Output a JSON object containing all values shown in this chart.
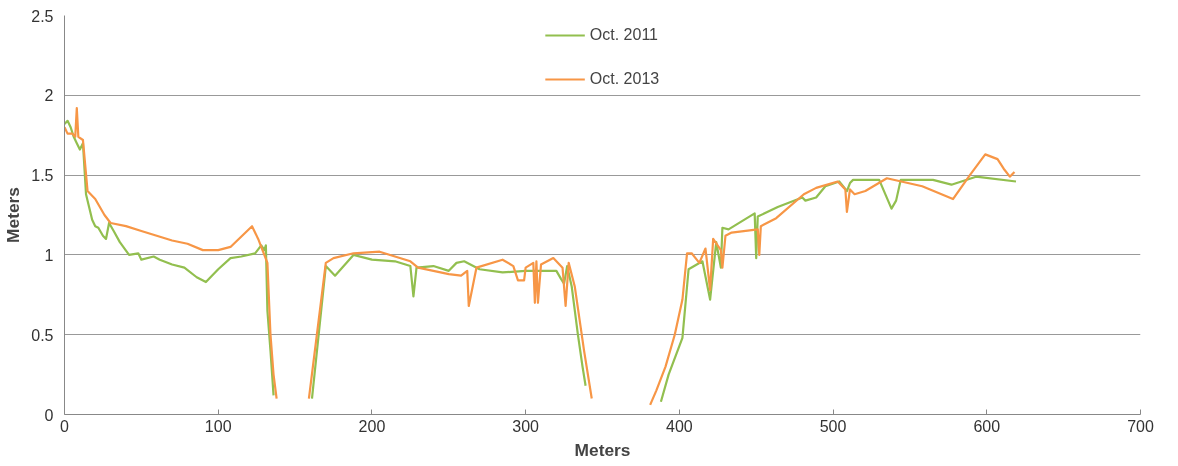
{
  "chart_data": {
    "type": "line",
    "xlabel": "Meters",
    "ylabel": "Meters",
    "xlim": [
      0,
      700
    ],
    "ylim": [
      0,
      2.5
    ],
    "xticks": [
      0,
      100,
      200,
      300,
      400,
      500,
      600,
      700
    ],
    "yticks": [
      0,
      0.5,
      1,
      1.5,
      2,
      2.5
    ],
    "grid": "y",
    "legend": "top",
    "marker": "none",
    "line_style": "solid",
    "series": [
      {
        "name": "Oct. 2011",
        "color": "#92bf4f",
        "x": [
          0,
          2,
          4,
          6,
          8,
          10,
          12,
          14,
          16,
          18,
          20,
          22,
          25,
          27,
          29,
          32,
          36,
          42,
          48,
          50,
          58,
          62,
          70,
          78,
          86,
          92,
          100,
          108,
          115,
          124,
          128,
          130,
          131,
          132,
          134,
          136,
          147,
          161,
          170,
          176,
          188,
          200,
          215,
          225,
          227,
          229,
          240,
          250,
          255,
          260,
          270,
          285,
          300,
          320,
          323,
          325,
          327,
          330,
          334,
          337,
          339,
          360,
          388,
          393,
          402,
          406,
          415,
          420,
          424,
          427,
          428,
          432,
          449,
          450,
          451,
          464,
          480,
          482,
          489,
          495,
          504,
          509,
          511,
          513,
          530,
          538,
          541,
          544,
          565,
          577,
          593,
          619
        ],
        "values": [
          1.82,
          1.84,
          1.8,
          1.74,
          1.7,
          1.66,
          1.7,
          1.38,
          1.3,
          1.22,
          1.18,
          1.17,
          1.12,
          1.1,
          1.2,
          1.15,
          1.08,
          1.0,
          1.01,
          0.97,
          0.99,
          0.97,
          0.94,
          0.92,
          0.86,
          0.83,
          0.91,
          0.98,
          0.99,
          1.01,
          1.06,
          1.03,
          1.06,
          0.65,
          0.4,
          0.12,
          null,
          0.1,
          0.93,
          0.87,
          1.0,
          0.97,
          0.96,
          0.93,
          0.74,
          0.92,
          0.93,
          0.9,
          0.95,
          0.96,
          0.91,
          0.89,
          0.9,
          0.9,
          0.85,
          0.82,
          0.93,
          0.8,
          0.5,
          0.3,
          0.18,
          null,
          0.08,
          0.25,
          0.48,
          0.91,
          0.96,
          0.72,
          1.08,
          0.92,
          1.17,
          1.16,
          1.26,
          0.98,
          1.24,
          1.3,
          1.36,
          1.34,
          1.36,
          1.43,
          1.46,
          1.4,
          1.45,
          1.47,
          1.47,
          1.29,
          1.34,
          1.47,
          1.47,
          1.44,
          1.49,
          1.46
        ]
      },
      {
        "name": "Oct. 2013",
        "color": "#f79646",
        "x": [
          0,
          2,
          5,
          7,
          8,
          9,
          12,
          15,
          20,
          26,
          30,
          40,
          50,
          60,
          70,
          80,
          90,
          100,
          108,
          122,
          126,
          132,
          134,
          136,
          138,
          148,
          159,
          170,
          175,
          188,
          205,
          215,
          225,
          230,
          240,
          250,
          258,
          262,
          263,
          268,
          285,
          292,
          295,
          299,
          300,
          305,
          306,
          307,
          308,
          310,
          318,
          324,
          326,
          328,
          332,
          338,
          343,
          362,
          381,
          385,
          391,
          397,
          402,
          405,
          408,
          413,
          417,
          420,
          422,
          427,
          428,
          430,
          434,
          451,
          452,
          453,
          463,
          481,
          489,
          503,
          508,
          509,
          511,
          514,
          521,
          535,
          558,
          578,
          589,
          599,
          607,
          611,
          615,
          618
        ],
        "values": [
          1.8,
          1.76,
          1.76,
          1.74,
          1.92,
          1.74,
          1.72,
          1.4,
          1.35,
          1.25,
          1.2,
          1.18,
          1.15,
          1.12,
          1.09,
          1.07,
          1.03,
          1.03,
          1.05,
          1.18,
          1.1,
          0.95,
          0.5,
          0.25,
          0.1,
          null,
          0.1,
          0.95,
          0.98,
          1.01,
          1.02,
          0.99,
          0.96,
          0.92,
          0.9,
          0.88,
          0.87,
          0.9,
          0.68,
          0.92,
          0.97,
          0.93,
          0.84,
          0.84,
          0.92,
          0.95,
          0.7,
          0.96,
          0.7,
          0.94,
          0.98,
          0.92,
          0.68,
          0.95,
          0.8,
          0.4,
          0.1,
          null,
          0.06,
          0.15,
          0.3,
          0.5,
          0.72,
          1.01,
          1.01,
          0.95,
          1.04,
          0.78,
          1.1,
          1.03,
          0.92,
          1.12,
          1.14,
          1.16,
          1.0,
          1.18,
          1.23,
          1.38,
          1.42,
          1.46,
          1.41,
          1.27,
          1.41,
          1.38,
          1.4,
          1.48,
          1.43,
          1.35,
          1.5,
          1.63,
          1.6,
          1.54,
          1.49,
          1.52
        ]
      }
    ]
  }
}
